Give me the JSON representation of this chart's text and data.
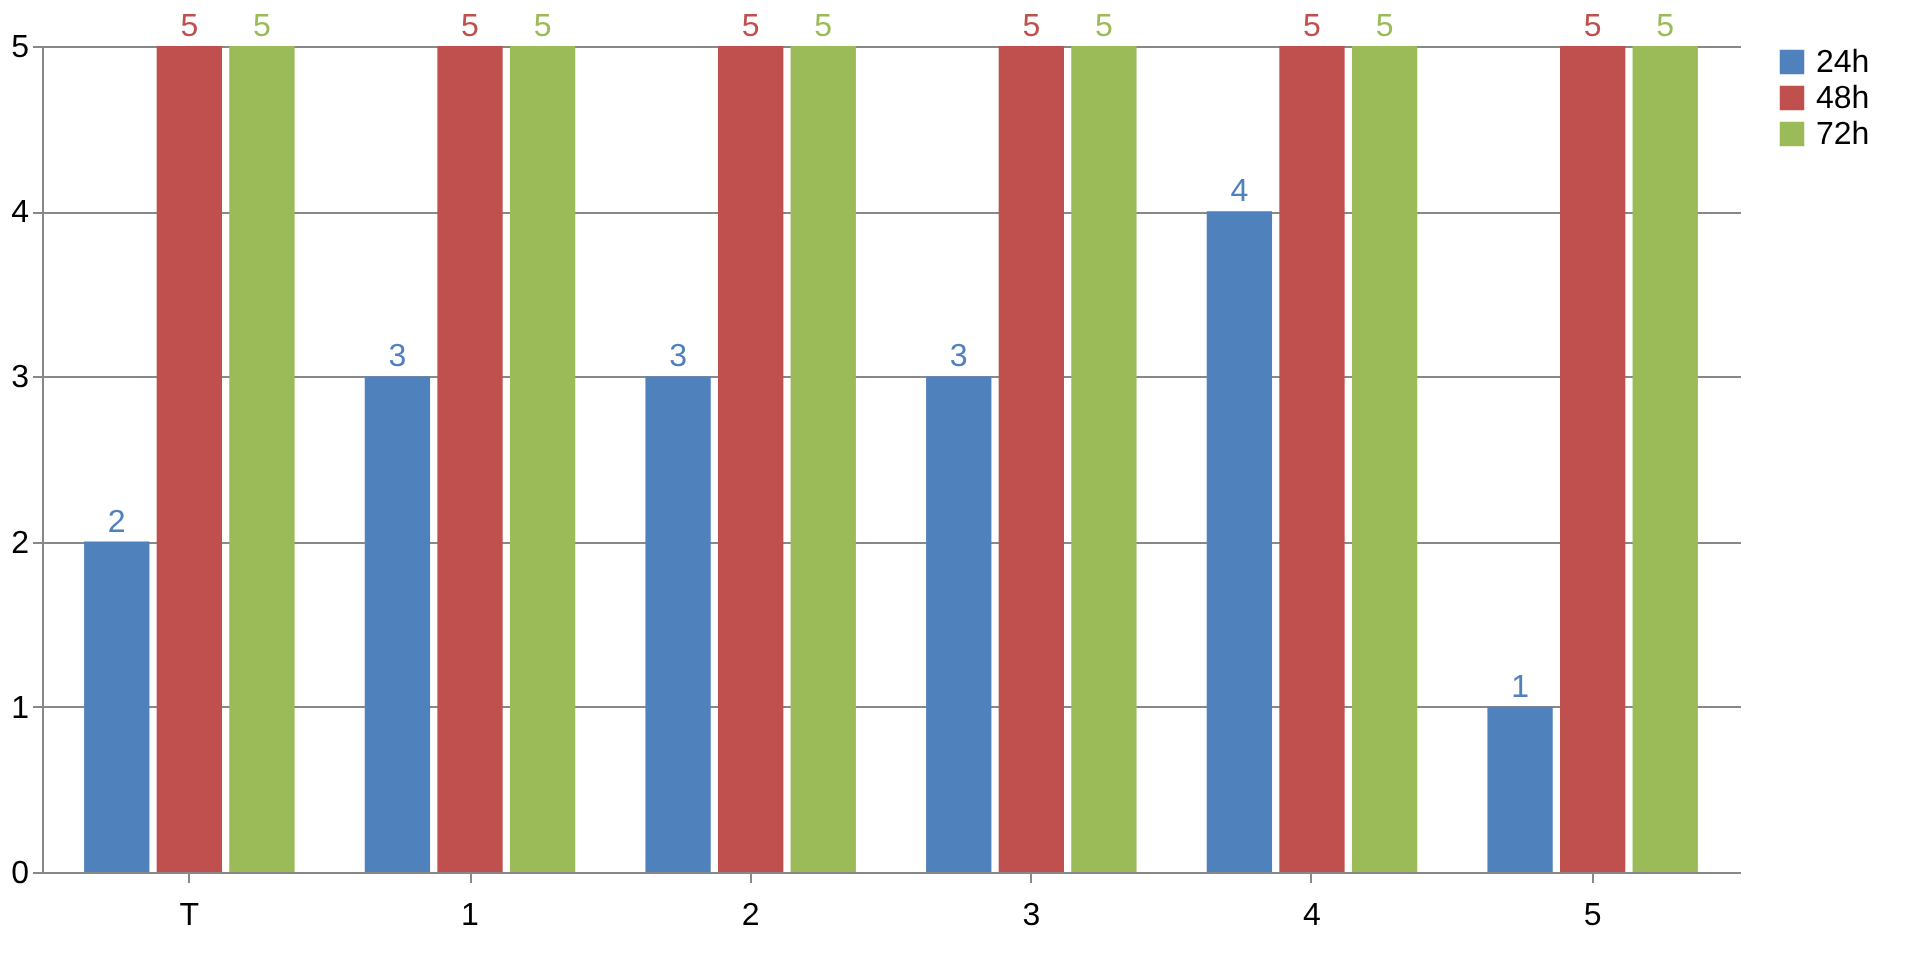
{
  "chart_data": {
    "type": "bar",
    "categories": [
      "T",
      "1",
      "2",
      "3",
      "4",
      "5"
    ],
    "series": [
      {
        "name": "24h",
        "color": "#4f81bd",
        "values": [
          2,
          3,
          3,
          3,
          4,
          1
        ]
      },
      {
        "name": "48h",
        "color": "#c0504d",
        "values": [
          5,
          5,
          5,
          5,
          5,
          5
        ]
      },
      {
        "name": "72h",
        "color": "#9bbb59",
        "values": [
          5,
          5,
          5,
          5,
          5,
          5
        ]
      }
    ],
    "ylim": [
      0,
      5
    ],
    "yticks": [
      0,
      1,
      2,
      3,
      4,
      5
    ],
    "grid": "y",
    "legend": "right",
    "data_labels": true
  }
}
